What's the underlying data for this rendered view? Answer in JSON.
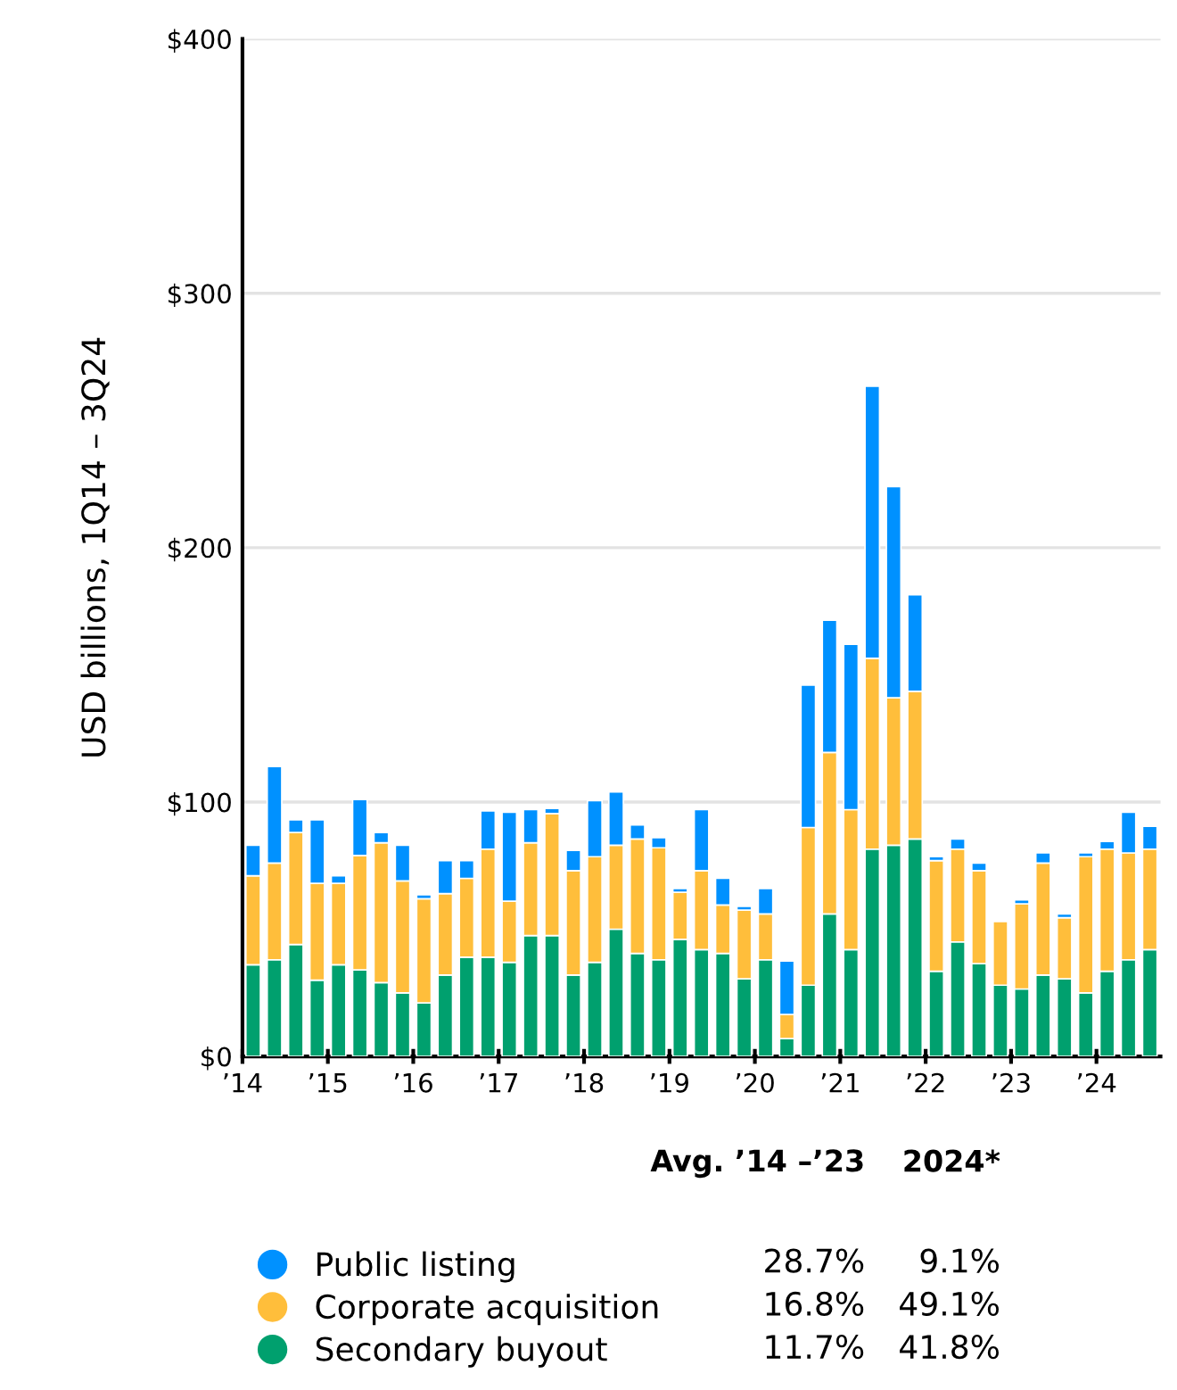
{
  "chart_data": {
    "type": "bar",
    "stacked": true,
    "ylabel": "USD billions, 1Q14 – 3Q24",
    "categories": [
      "’14",
      null,
      null,
      null,
      "’15",
      null,
      null,
      null,
      "’16",
      null,
      null,
      null,
      "’17",
      null,
      null,
      null,
      "’18",
      null,
      null,
      null,
      "’19",
      null,
      null,
      null,
      "’20",
      null,
      null,
      null,
      "’21",
      null,
      null,
      null,
      "’22",
      null,
      null,
      null,
      "’23",
      null,
      null,
      null,
      "’24",
      null,
      null
    ],
    "series": [
      {
        "name": "Secondary buyout",
        "color": "#00a06e",
        "values": [
          36,
          38,
          44,
          30,
          36,
          34,
          29,
          25,
          21,
          32,
          39,
          39,
          37,
          47.5,
          47.5,
          32,
          37,
          50,
          40.5,
          38,
          46,
          42,
          40.5,
          30.5,
          38,
          7,
          28,
          56,
          42,
          81.5,
          83,
          85.5,
          33.5,
          45,
          36.5,
          28,
          26.5,
          32,
          30.5,
          25,
          33.5,
          38,
          42
        ]
      },
      {
        "name": "Corporate acquisition",
        "color": "#ffbe3b",
        "values": [
          35,
          38,
          44,
          38,
          32,
          45,
          55,
          44,
          41,
          32,
          31,
          42.5,
          24,
          36.5,
          48,
          41,
          41.5,
          33,
          45,
          44,
          18.5,
          31,
          19,
          27,
          18,
          9.5,
          62,
          63.5,
          55,
          75,
          58,
          58,
          43.5,
          36.5,
          36.5,
          25,
          33.5,
          44,
          24,
          53.5,
          48,
          42,
          39.5
        ]
      },
      {
        "name": "Public listing",
        "color": "#0091ff",
        "values": [
          12,
          38,
          5,
          25,
          3,
          22,
          4,
          14,
          1.5,
          13,
          7,
          15,
          35,
          13,
          2,
          8,
          22,
          21,
          5.5,
          4,
          1.5,
          24,
          10.5,
          1.5,
          10,
          21,
          56,
          52,
          65,
          107,
          83,
          38,
          1.5,
          4,
          3,
          0,
          1.5,
          4,
          1.5,
          1.5,
          3,
          16,
          9
        ]
      }
    ],
    "ylim": [
      0,
      400
    ],
    "yticks": [
      {
        "value": 0,
        "label": "$0"
      },
      {
        "value": 100,
        "label": "$100"
      },
      {
        "value": 200,
        "label": "$200"
      },
      {
        "value": 300,
        "label": "$300"
      },
      {
        "value": 400,
        "label": "$400"
      }
    ],
    "grid": "y",
    "legend": "bottom",
    "annotations": [
      "Avg. ’14 –’23",
      "2024*",
      "28.7%",
      "9.1%",
      "16.8%",
      "49.1%",
      "11.7%",
      "41.8%"
    ]
  }
}
